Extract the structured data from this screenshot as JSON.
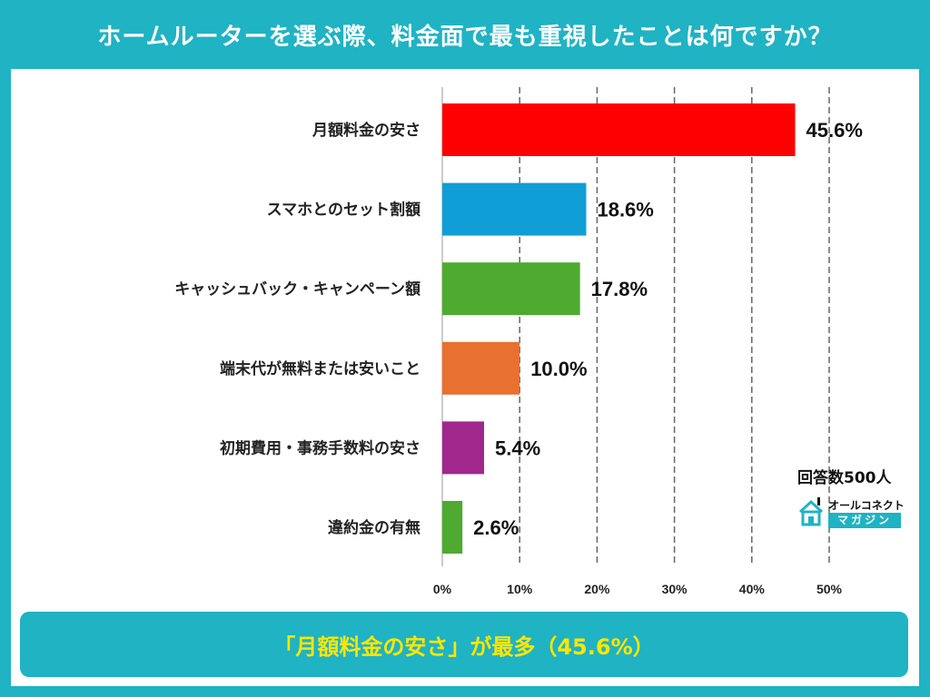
{
  "title": "ホームルーターを選ぶ際、料金面で最も重視したことは何ですか？",
  "respondents": "回答数500人",
  "logo": {
    "top": "オールコネクト",
    "bottom": "マガジン"
  },
  "conclusion": {
    "highlight": "「月額料金の安さ」が最多",
    "value": "（45.6%）"
  },
  "colors": {
    "background": "#1fb3c4",
    "highlight": "#ffe600"
  },
  "chart_data": {
    "type": "bar",
    "orientation": "horizontal",
    "categories": [
      "月額料金の安さ",
      "スマホとのセット割額",
      "キャッシュバック・キャンペーン額",
      "端末代が無料または安いこと",
      "初期費用・事務手数料の安さ",
      "違約金の有無"
    ],
    "values": [
      45.6,
      18.6,
      17.8,
      10.0,
      5.4,
      2.6
    ],
    "value_labels": [
      "45.6%",
      "18.6%",
      "17.8%",
      "10.0%",
      "5.4%",
      "2.6%"
    ],
    "colors": [
      "#ff0000",
      "#0f9fd6",
      "#4eaa30",
      "#e87030",
      "#a0288c",
      "#4eaa30"
    ],
    "xlim": [
      0,
      50
    ],
    "ticks": [
      0,
      10,
      20,
      30,
      40,
      50
    ],
    "tick_labels": [
      "0%",
      "10%",
      "20%",
      "30%",
      "40%",
      "50%"
    ],
    "grid": "vertical dashed"
  }
}
